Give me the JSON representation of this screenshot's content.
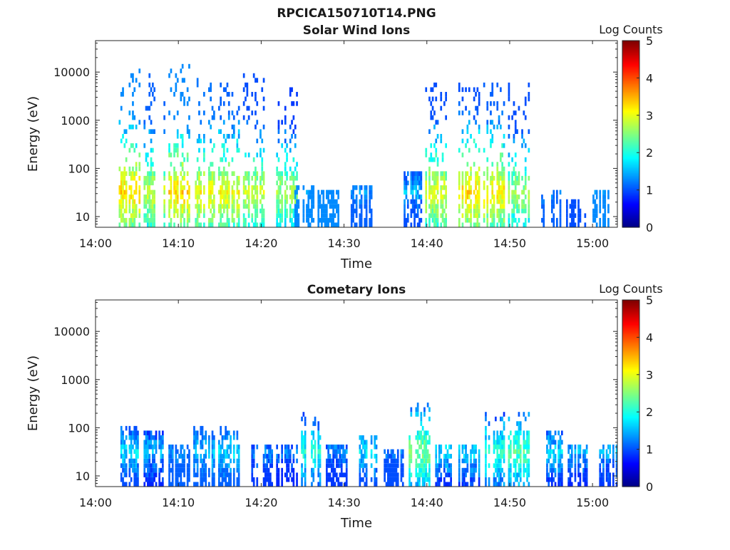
{
  "chart_data": {
    "title": "RPCICA150710T14.PNG",
    "type": "heatmap",
    "colorbar": {
      "label": "Log Counts",
      "range": [
        0,
        5
      ],
      "ticks": [
        "5",
        "4",
        "3",
        "2",
        "1",
        "0"
      ],
      "colormap": "jet"
    },
    "panels": [
      {
        "title": "Solar Wind Ions",
        "xlabel": "Time",
        "ylabel": "Energy (eV)",
        "y_scale": "log",
        "xlim": [
          "14:00",
          "15:03"
        ],
        "ylim": [
          6,
          45000
        ],
        "x_ticks": [
          "14:00",
          "14:10",
          "14:20",
          "14:30",
          "14:40",
          "14:50",
          "15:00"
        ],
        "y_ticks": [
          "10",
          "100",
          "1000",
          "10000"
        ],
        "y_tick_values": [
          10,
          100,
          1000,
          10000
        ],
        "bursts": [
          {
            "t": "14:04",
            "low": 1.3,
            "high": 3.6,
            "energy_top": 10000
          },
          {
            "t": "14:07",
            "low": 1.1,
            "high": 3.2,
            "energy_top": 10000
          },
          {
            "t": "14:10",
            "low": 1.3,
            "high": 3.6,
            "energy_top": 12000
          },
          {
            "t": "14:13",
            "low": 1.2,
            "high": 3.4,
            "energy_top": 7000
          },
          {
            "t": "14:16",
            "low": 1.1,
            "high": 3.4,
            "energy_top": 6000
          },
          {
            "t": "14:19",
            "low": 1.0,
            "high": 3.2,
            "energy_top": 9000
          },
          {
            "t": "14:23",
            "low": 0.9,
            "high": 3.0,
            "energy_top": 4000
          },
          {
            "t": "14:25",
            "low": 1.3,
            "high": 1.6,
            "energy_top": 40
          },
          {
            "t": "14:28",
            "low": 1.3,
            "high": 1.4,
            "energy_top": 30
          },
          {
            "t": "14:32",
            "low": 1.1,
            "high": 1.6,
            "energy_top": 40
          },
          {
            "t": "14:38",
            "low": 1.0,
            "high": 1.8,
            "energy_top": 80
          },
          {
            "t": "14:41",
            "low": 1.0,
            "high": 3.3,
            "energy_top": 5000
          },
          {
            "t": "14:45",
            "low": 1.0,
            "high": 3.6,
            "energy_top": 6000
          },
          {
            "t": "14:48",
            "low": 1.1,
            "high": 3.5,
            "energy_top": 5000
          },
          {
            "t": "14:51",
            "low": 1.0,
            "high": 3.0,
            "energy_top": 5000
          },
          {
            "t": "14:55",
            "low": 1.1,
            "high": 1.6,
            "energy_top": 30
          },
          {
            "t": "14:58",
            "low": 1.0,
            "high": 1.2,
            "energy_top": 20
          },
          {
            "t": "15:01",
            "low": 1.3,
            "high": 1.5,
            "energy_top": 30
          }
        ]
      },
      {
        "title": "Cometary Ions",
        "xlabel": "Time",
        "ylabel": "Energy (eV)",
        "y_scale": "log",
        "xlim": [
          "14:00",
          "15:03"
        ],
        "ylim": [
          6,
          45000
        ],
        "x_ticks": [
          "14:00",
          "14:10",
          "14:20",
          "14:30",
          "14:40",
          "14:50",
          "15:00"
        ],
        "y_ticks": [
          "10",
          "100",
          "1000",
          "10000"
        ],
        "y_tick_values": [
          10,
          100,
          1000,
          10000
        ],
        "bursts": [
          {
            "t": "14:04",
            "low": 1.0,
            "high": 2.0,
            "energy_top": 100
          },
          {
            "t": "14:07",
            "low": 0.8,
            "high": 1.8,
            "energy_top": 80
          },
          {
            "t": "14:10",
            "low": 1.1,
            "high": 1.6,
            "energy_top": 40
          },
          {
            "t": "14:13",
            "low": 1.1,
            "high": 1.9,
            "energy_top": 90
          },
          {
            "t": "14:16",
            "low": 1.1,
            "high": 2.0,
            "energy_top": 100
          },
          {
            "t": "14:20",
            "low": 0.9,
            "high": 1.6,
            "energy_top": 40
          },
          {
            "t": "14:23",
            "low": 0.8,
            "high": 1.6,
            "energy_top": 40
          },
          {
            "t": "14:26",
            "low": 0.9,
            "high": 2.3,
            "energy_top": 200
          },
          {
            "t": "14:29",
            "low": 0.9,
            "high": 1.6,
            "energy_top": 40
          },
          {
            "t": "14:33",
            "low": 1.0,
            "high": 2.0,
            "energy_top": 60
          },
          {
            "t": "14:36",
            "low": 1.0,
            "high": 1.5,
            "energy_top": 30
          },
          {
            "t": "14:39",
            "low": 0.8,
            "high": 2.8,
            "energy_top": 300
          },
          {
            "t": "14:42",
            "low": 0.8,
            "high": 2.0,
            "energy_top": 40
          },
          {
            "t": "14:45",
            "low": 0.8,
            "high": 2.0,
            "energy_top": 40
          },
          {
            "t": "14:48",
            "low": 0.8,
            "high": 2.4,
            "energy_top": 200
          },
          {
            "t": "14:51",
            "low": 0.8,
            "high": 2.6,
            "energy_top": 200
          },
          {
            "t": "14:55",
            "low": 0.8,
            "high": 2.0,
            "energy_top": 70
          },
          {
            "t": "14:58",
            "low": 0.8,
            "high": 1.8,
            "energy_top": 40
          },
          {
            "t": "15:02",
            "low": 0.9,
            "high": 1.8,
            "energy_top": 40
          }
        ]
      }
    ]
  }
}
